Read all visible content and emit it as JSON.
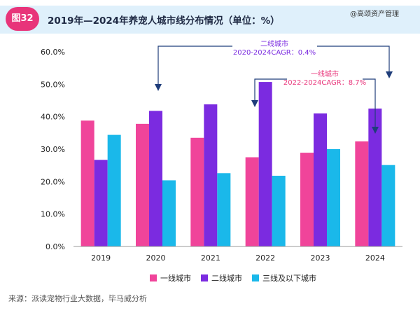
{
  "header": {
    "badge": "图32",
    "title": "2019年—2024年养宠人城市线分布情况（单位：%）",
    "watermark": "@高颂资产管理"
  },
  "source": "来源：派读宠物行业大数据，毕马威分析",
  "colors": {
    "tier1": "#f0449a",
    "tier2": "#7b2be0",
    "tier3": "#1ab8ea",
    "annot_tier2": "#7b2be0",
    "annot_tier1": "#e8347a",
    "arrow": "#1f3d7a"
  },
  "annotations": {
    "tier2": {
      "line1": "二线城市",
      "line2": "2020-2024CAGR：0.4%"
    },
    "tier1": {
      "line1": "一线城市",
      "line2": "2022-2024CAGR：8.7%"
    }
  },
  "chart_data": {
    "type": "bar",
    "categories": [
      "2019",
      "2020",
      "2021",
      "2022",
      "2023",
      "2024"
    ],
    "series": [
      {
        "name": "一线城市",
        "values": [
          38.8,
          37.8,
          33.5,
          27.5,
          28.9,
          32.4
        ]
      },
      {
        "name": "二线城市",
        "values": [
          26.7,
          41.8,
          43.8,
          50.7,
          41.0,
          42.5
        ]
      },
      {
        "name": "三线及以下城市",
        "values": [
          34.4,
          20.4,
          22.6,
          21.8,
          30.0,
          25.1
        ]
      }
    ],
    "yticks": [
      "0.0%",
      "10.0%",
      "20.0%",
      "30.0%",
      "40.0%",
      "50.0%",
      "60.0%"
    ],
    "ylim": [
      0,
      60
    ],
    "legend_position": "bottom"
  }
}
